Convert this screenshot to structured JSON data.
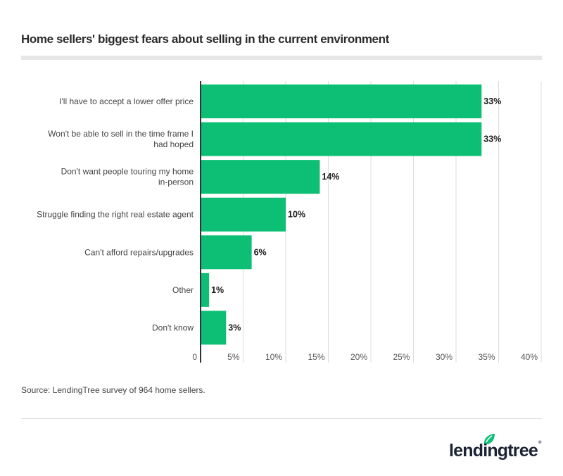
{
  "header": {
    "title": "Home sellers' biggest fears about selling in the current environment"
  },
  "chart_data": {
    "type": "bar",
    "orientation": "horizontal",
    "title": "Home sellers' biggest fears about selling in the current environment",
    "xlabel": "",
    "ylabel": "",
    "categories": [
      "I'll have to accept a lower offer price",
      "Won't be able to sell in the time frame I had hoped",
      "Don't want people touring my home in-person",
      "Struggle finding the right real estate agent",
      "Can't afford repairs/upgrades",
      "Other",
      "Don't know"
    ],
    "category_lines": [
      [
        "I'll have to accept a lower offer price"
      ],
      [
        "Won't be able to sell in the time frame I",
        "had hoped"
      ],
      [
        "Don't want people touring my home",
        "in-person"
      ],
      [
        "Struggle finding the right real estate agent"
      ],
      [
        "Can't afford repairs/upgrades"
      ],
      [
        "Other"
      ],
      [
        "Don't know"
      ]
    ],
    "values": [
      33,
      33,
      14,
      10,
      6,
      1,
      3
    ],
    "value_labels": [
      "33%",
      "33%",
      "14%",
      "10%",
      "6%",
      "1%",
      "3%"
    ],
    "xlim": [
      0,
      40
    ],
    "x_ticks": [
      0,
      5,
      10,
      15,
      20,
      25,
      30,
      35,
      40
    ],
    "x_tick_labels": [
      "0",
      "5%",
      "10%",
      "15%",
      "20%",
      "25%",
      "30%",
      "35%",
      "40%"
    ],
    "grid": "vertical",
    "legend": "none",
    "bar_color": "#0dbf74"
  },
  "footer": {
    "source": "Source: LendingTree survey of 964 home sellers.",
    "logo_text": "lendingtree",
    "logo_registered": "®"
  },
  "colors": {
    "bar": "#0dbf74",
    "axis": "#333333",
    "grid": "#dddddd",
    "logo_leaf": "#0dbf74",
    "logo_text": "#1b2233"
  }
}
